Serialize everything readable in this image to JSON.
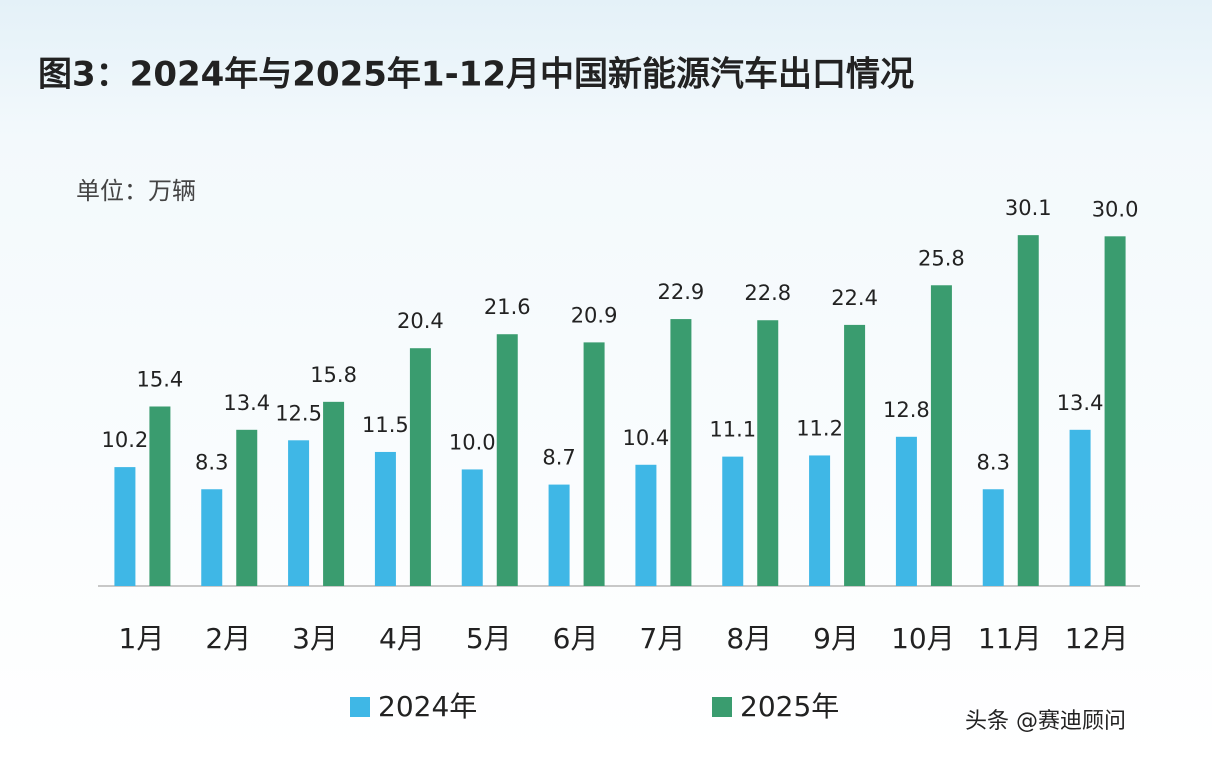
{
  "chart_data": {
    "type": "bar",
    "title": "图3：2024年与2025年1-12月中国新能源汽车出口情况",
    "unit_label": "单位：万辆",
    "categories": [
      "1月",
      "2月",
      "3月",
      "4月",
      "5月",
      "6月",
      "7月",
      "8月",
      "9月",
      "10月",
      "11月",
      "12月"
    ],
    "series": [
      {
        "name": "2024年",
        "color": "#3fb7e6",
        "values": [
          10.2,
          8.3,
          12.5,
          11.5,
          10,
          8.7,
          10.4,
          11.1,
          11.2,
          12.8,
          8.3,
          13.4
        ],
        "value_labels": [
          "10.2",
          "8.3",
          "12.5",
          "11.5",
          "10.0",
          "8.7",
          "10.4",
          "11.1",
          "11.2",
          "12.8",
          "8.3",
          "13.4"
        ]
      },
      {
        "name": "2025年",
        "color": "#3a9c6f",
        "values": [
          15.4,
          13.4,
          15.8,
          20.4,
          21.6,
          20.9,
          22.9,
          22.8,
          22.4,
          25.8,
          30.1,
          30
        ],
        "value_labels": [
          "15.4",
          "13.4",
          "15.8",
          "20.4",
          "21.6",
          "20.9",
          "22.9",
          "22.8",
          "22.4",
          "25.8",
          "30.1",
          "30.0"
        ]
      }
    ],
    "ylim": [
      0,
      32
    ],
    "source": "头条 @赛迪顾问"
  }
}
